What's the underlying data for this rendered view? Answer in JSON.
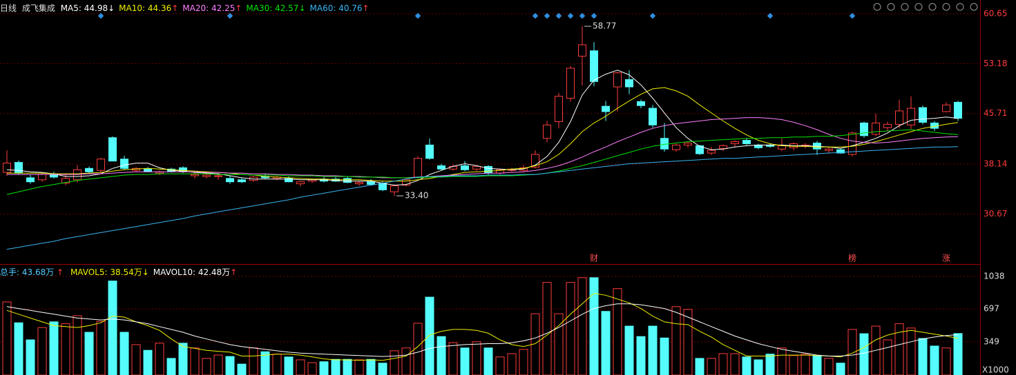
{
  "chart_data": [
    {
      "type": "candlestick",
      "subtitle": "日线",
      "title": "成飞集成",
      "up_color": "#ff3c3c",
      "down_color": "#54fcfc",
      "open": [
        36.9,
        38.4,
        36.1,
        35.8,
        36.6,
        35.3,
        35.8,
        37.5,
        37.2,
        42.1,
        38.9,
        37.2,
        37.4,
        36.8,
        37.4,
        37.6,
        36.4,
        36.3,
        36.3,
        36.0,
        35.8,
        35.7,
        36.3,
        36.0,
        36.0,
        35.2,
        35.6,
        35.9,
        35.9,
        36.0,
        35.2,
        35.5,
        35.3,
        34.0,
        35.0,
        36.2,
        41.0,
        37.9,
        37.4,
        37.9,
        37.4,
        37.8,
        36.8,
        37.2,
        37.2,
        37.7,
        42.0,
        44.5,
        48.0,
        54.3,
        55.1,
        46.8,
        49.7,
        50.8,
        47.5,
        46.5,
        42.0,
        40.3,
        41.0,
        40.9,
        39.8,
        40.5,
        41.2,
        41.7,
        41.0,
        41.0,
        40.4,
        40.6,
        40.8,
        41.3,
        40.2,
        40.3,
        39.6,
        44.3,
        42.6,
        43.6,
        44.1,
        44.0,
        46.6,
        44.3,
        46.0,
        47.4
      ],
      "high": [
        40.2,
        38.7,
        36.5,
        36.9,
        37.0,
        36.6,
        38.0,
        37.8,
        39.1,
        42.3,
        39.4,
        37.7,
        37.7,
        37.2,
        37.6,
        37.8,
        36.9,
        36.8,
        36.8,
        36.4,
        36.1,
        36.4,
        36.7,
        36.4,
        36.3,
        35.6,
        36.0,
        36.2,
        36.2,
        36.3,
        35.6,
        35.9,
        35.6,
        35.1,
        36.0,
        39.3,
        42.0,
        38.2,
        38.1,
        38.6,
        38.0,
        38.0,
        37.5,
        37.6,
        38.0,
        40.2,
        44.6,
        48.8,
        52.8,
        58.77,
        56.4,
        47.6,
        52.0,
        52.2,
        47.8,
        47.0,
        44.3,
        41.2,
        41.5,
        41.0,
        40.7,
        41.1,
        41.7,
        42.0,
        41.2,
        41.3,
        42.0,
        41.4,
        41.3,
        41.6,
        40.7,
        40.5,
        43.0,
        44.5,
        45.7,
        44.5,
        47.8,
        48.3,
        46.9,
        44.6,
        47.4,
        47.6
      ],
      "low": [
        36.4,
        36.6,
        35.2,
        35.5,
        36.0,
        35.0,
        35.4,
        36.8,
        36.8,
        38.6,
        37.3,
        36.9,
        36.9,
        36.5,
        36.9,
        36.8,
        36.0,
        36.0,
        35.8,
        35.2,
        35.3,
        35.5,
        35.9,
        35.7,
        35.4,
        34.8,
        35.3,
        35.4,
        35.5,
        35.3,
        34.9,
        35.0,
        34.1,
        33.4,
        34.8,
        36.0,
        38.8,
        37.2,
        37.2,
        37.1,
        37.1,
        36.6,
        36.6,
        37.0,
        37.0,
        37.5,
        41.4,
        43.5,
        47.5,
        49.9,
        49.8,
        44.6,
        46.0,
        48.6,
        46.5,
        43.6,
        40.0,
        40.0,
        40.6,
        39.5,
        39.5,
        40.1,
        40.7,
        41.0,
        40.4,
        40.6,
        40.1,
        40.2,
        40.5,
        39.5,
        39.8,
        39.7,
        39.3,
        42.1,
        42.3,
        43.1,
        43.5,
        43.4,
        44.1,
        43.1,
        45.9,
        44.6
      ],
      "close": [
        38.3,
        36.8,
        35.5,
        36.6,
        36.2,
        36.0,
        37.3,
        37.0,
        38.9,
        38.6,
        37.5,
        37.5,
        37.0,
        37.0,
        37.0,
        37.0,
        36.6,
        36.5,
        36.4,
        35.5,
        35.5,
        36.2,
        36.1,
        36.2,
        35.5,
        35.5,
        35.8,
        35.6,
        35.6,
        35.4,
        35.4,
        35.1,
        34.3,
        34.9,
        35.8,
        39.0,
        39.0,
        37.4,
        37.8,
        37.3,
        37.8,
        36.8,
        37.3,
        37.4,
        37.6,
        39.6,
        44.0,
        48.3,
        52.5,
        56.0,
        50.5,
        46.0,
        51.8,
        49.7,
        46.9,
        44.0,
        40.4,
        41.0,
        41.3,
        39.7,
        40.2,
        40.9,
        41.5,
        41.2,
        40.6,
        40.8,
        40.9,
        41.2,
        41.0,
        40.4,
        40.4,
        39.8,
        42.8,
        42.4,
        44.3,
        44.1,
        46.1,
        46.5,
        44.4,
        43.5,
        47.0,
        45.0
      ],
      "series": [
        {
          "name": "MA5: 44.98",
          "trend": "↓",
          "color": "#ffffff",
          "values": [
            37.3,
            37.2,
            37.0,
            36.9,
            36.7,
            36.3,
            36.3,
            36.4,
            36.7,
            37.5,
            38.0,
            38.3,
            38.3,
            37.6,
            37.2,
            37.1,
            36.9,
            36.8,
            36.7,
            36.4,
            36.1,
            35.9,
            35.9,
            35.9,
            35.9,
            35.8,
            35.8,
            35.8,
            35.7,
            35.6,
            35.6,
            35.6,
            35.3,
            35.0,
            35.1,
            35.7,
            36.6,
            37.2,
            37.8,
            38.2,
            37.9,
            37.5,
            37.4,
            37.3,
            37.4,
            38.0,
            39.3,
            41.4,
            44.5,
            48.5,
            50.7,
            51.6,
            52.2,
            51.5,
            50.0,
            48.0,
            45.8,
            43.6,
            42.0,
            40.8,
            40.3,
            40.4,
            40.7,
            40.9,
            41.0,
            41.0,
            41.0,
            40.9,
            40.9,
            40.8,
            40.7,
            40.5,
            40.9,
            41.4,
            42.0,
            42.8,
            43.9,
            44.7,
            44.9,
            45.0,
            45.2,
            44.98
          ]
        },
        {
          "name": "MA10: 44.36",
          "trend": "↑",
          "color": "#f0f000",
          "values": [
            36.8,
            36.8,
            36.8,
            36.8,
            36.7,
            36.7,
            36.7,
            36.8,
            36.9,
            37.1,
            37.3,
            37.4,
            37.5,
            37.4,
            37.3,
            37.2,
            37.1,
            37.0,
            36.9,
            36.8,
            36.6,
            36.5,
            36.3,
            36.2,
            36.1,
            36.0,
            35.9,
            35.9,
            35.8,
            35.8,
            35.8,
            35.7,
            35.6,
            35.6,
            35.6,
            35.8,
            36.0,
            36.3,
            36.6,
            36.9,
            37.0,
            37.1,
            37.2,
            37.4,
            37.5,
            37.9,
            38.5,
            39.6,
            41.2,
            43.0,
            44.3,
            45.3,
            46.5,
            47.6,
            48.6,
            49.4,
            49.6,
            49.1,
            48.3,
            47.0,
            45.8,
            44.6,
            43.5,
            42.5,
            41.7,
            41.2,
            40.9,
            40.8,
            40.8,
            40.7,
            40.7,
            40.7,
            40.8,
            41.1,
            41.5,
            42.0,
            42.5,
            43.0,
            43.5,
            43.8,
            44.1,
            44.36
          ]
        },
        {
          "name": "MA20: 42.25",
          "trend": "↑",
          "color": "#ff80ff",
          "values": [
            36.6,
            36.6,
            36.6,
            36.6,
            36.6,
            36.6,
            36.6,
            36.7,
            36.7,
            36.8,
            36.9,
            37.0,
            37.0,
            37.0,
            37.0,
            37.0,
            37.0,
            36.9,
            36.9,
            36.8,
            36.8,
            36.7,
            36.7,
            36.6,
            36.6,
            36.5,
            36.5,
            36.4,
            36.4,
            36.3,
            36.3,
            36.2,
            36.1,
            36.1,
            36.1,
            36.2,
            36.3,
            36.4,
            36.5,
            36.6,
            36.7,
            36.8,
            36.8,
            36.9,
            37.0,
            37.2,
            37.5,
            37.9,
            38.5,
            39.2,
            40.0,
            40.7,
            41.5,
            42.2,
            42.9,
            43.5,
            43.9,
            44.2,
            44.4,
            44.6,
            44.8,
            44.9,
            45.0,
            45.1,
            45.1,
            45.0,
            44.8,
            44.4,
            43.9,
            43.3,
            42.6,
            42.0,
            41.6,
            41.4,
            41.3,
            41.4,
            41.6,
            41.8,
            42.0,
            42.1,
            42.2,
            42.25
          ]
        },
        {
          "name": "MA30: 42.57",
          "trend": "↓",
          "color": "#00e600",
          "values": [
            33.6,
            34.0,
            34.4,
            34.8,
            35.1,
            35.4,
            35.7,
            35.9,
            36.1,
            36.3,
            36.5,
            36.6,
            36.6,
            36.7,
            36.7,
            36.7,
            36.7,
            36.7,
            36.6,
            36.6,
            36.6,
            36.5,
            36.5,
            36.5,
            36.4,
            36.4,
            36.4,
            36.3,
            36.3,
            36.3,
            36.2,
            36.2,
            36.2,
            36.1,
            36.1,
            36.1,
            36.2,
            36.2,
            36.3,
            36.3,
            36.3,
            36.4,
            36.4,
            36.4,
            36.5,
            36.6,
            36.8,
            37.1,
            37.5,
            37.9,
            38.4,
            38.9,
            39.4,
            39.9,
            40.4,
            40.8,
            41.1,
            41.3,
            41.5,
            41.6,
            41.7,
            41.8,
            41.9,
            42.0,
            42.0,
            42.1,
            42.1,
            42.2,
            42.2,
            42.3,
            42.3,
            42.4,
            42.6,
            42.8,
            43.0,
            43.1,
            43.2,
            43.3,
            43.1,
            42.9,
            42.7,
            42.57
          ]
        },
        {
          "name": "MA60: 40.76",
          "trend": "↑",
          "color": "#3ab4f2",
          "values": [
            25.4,
            25.7,
            26.0,
            26.3,
            26.6,
            27.0,
            27.3,
            27.6,
            27.9,
            28.2,
            28.5,
            28.8,
            29.1,
            29.4,
            29.7,
            30.0,
            30.4,
            30.7,
            31.0,
            31.3,
            31.6,
            31.9,
            32.2,
            32.5,
            32.8,
            33.2,
            33.5,
            33.8,
            34.1,
            34.4,
            34.7,
            35.0,
            35.3,
            35.6,
            35.9,
            36.2,
            36.3,
            36.3,
            36.4,
            36.4,
            36.4,
            36.5,
            36.5,
            36.5,
            36.6,
            36.6,
            36.8,
            37.0,
            37.2,
            37.4,
            37.6,
            37.8,
            38.0,
            38.2,
            38.3,
            38.4,
            38.5,
            38.6,
            38.7,
            38.8,
            38.9,
            39.0,
            39.0,
            39.1,
            39.2,
            39.3,
            39.4,
            39.5,
            39.6,
            39.7,
            39.8,
            39.9,
            40.0,
            40.1,
            40.2,
            40.3,
            40.4,
            40.5,
            40.6,
            40.7,
            40.7,
            40.76
          ]
        }
      ],
      "ylim": [
        23.3,
        62.7
      ],
      "yticks": [
        60.65,
        53.18,
        45.71,
        38.14,
        30.67
      ],
      "grid": true,
      "annotations": [
        58.77,
        {
          "value": 33.4,
          "label": "33.40"
        }
      ],
      "event_labels": [
        "财",
        "榜",
        "涨"
      ]
    },
    {
      "type": "bar",
      "title": "总手: 43.68万",
      "trend": "↑",
      "values": [
        770,
        550,
        370,
        500,
        560,
        540,
        625,
        450,
        565,
        990,
        450,
        320,
        260,
        335,
        175,
        335,
        285,
        175,
        210,
        195,
        115,
        285,
        245,
        220,
        190,
        160,
        130,
        140,
        165,
        165,
        160,
        165,
        125,
        255,
        285,
        545,
        820,
        405,
        340,
        285,
        350,
        285,
        190,
        225,
        270,
        645,
        975,
        645,
        975,
        1025,
        1025,
        670,
        910,
        515,
        405,
        515,
        390,
        720,
        690,
        175,
        175,
        225,
        225,
        190,
        160,
        220,
        285,
        205,
        220,
        205,
        175,
        125,
        480,
        435,
        515,
        370,
        540,
        495,
        385,
        305,
        285,
        436.8
      ],
      "series": [
        {
          "name": "MAVOL5: 38.54万",
          "trend": "↓",
          "color": "#f0f000",
          "values": [
            680,
            640,
            600,
            560,
            520,
            510,
            500,
            520,
            550,
            620,
            610,
            560,
            520,
            470,
            380,
            300,
            280,
            260,
            250,
            240,
            200,
            200,
            210,
            220,
            220,
            210,
            190,
            170,
            160,
            160,
            155,
            160,
            155,
            175,
            200,
            300,
            420,
            460,
            480,
            480,
            470,
            440,
            370,
            320,
            300,
            330,
            420,
            520,
            640,
            750,
            860,
            840,
            800,
            760,
            700,
            620,
            560,
            540,
            530,
            460,
            400,
            320,
            260,
            200,
            200,
            200,
            210,
            210,
            210,
            205,
            200,
            190,
            230,
            290,
            370,
            420,
            450,
            470,
            450,
            430,
            410,
            385.4
          ]
        },
        {
          "name": "MAVOL10: 42.48万",
          "trend": "↑",
          "color": "#ffffff",
          "values": [
            720,
            700,
            680,
            660,
            640,
            620,
            600,
            590,
            580,
            590,
            580,
            560,
            540,
            510,
            480,
            450,
            410,
            380,
            350,
            320,
            300,
            285,
            270,
            255,
            240,
            230,
            225,
            220,
            215,
            210,
            205,
            200,
            195,
            200,
            210,
            240,
            280,
            300,
            310,
            320,
            325,
            330,
            330,
            340,
            360,
            390,
            440,
            500,
            570,
            640,
            700,
            730,
            750,
            750,
            740,
            720,
            700,
            660,
            610,
            560,
            510,
            460,
            410,
            370,
            330,
            300,
            270,
            250,
            230,
            210,
            200,
            200,
            210,
            230,
            260,
            290,
            320,
            350,
            380,
            400,
            415,
            424.8
          ]
        }
      ],
      "ylim": [
        0,
        1150
      ],
      "yticks": [
        1038,
        697,
        349
      ],
      "unit_label": "X1000"
    }
  ]
}
